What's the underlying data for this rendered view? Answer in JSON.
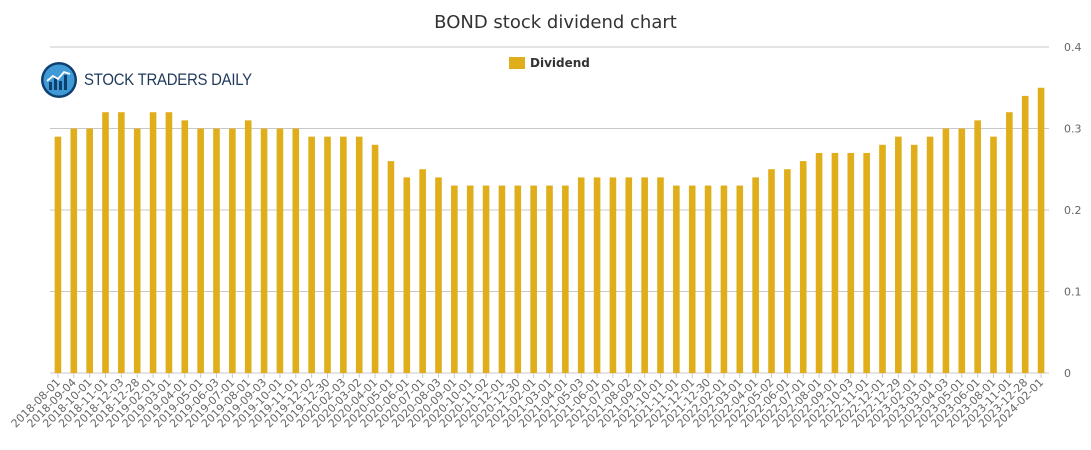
{
  "chart_data": {
    "type": "bar",
    "title": "BOND stock dividend chart",
    "xlabel": "",
    "ylabel": "",
    "ylim": [
      0,
      0.4
    ],
    "yticks": [
      "0",
      "0.1",
      "0.2",
      "0.3",
      "0.4"
    ],
    "grid": true,
    "legend_position": "top-center",
    "bar_color": "#dfae1a",
    "series": [
      {
        "name": "Dividend",
        "values": [
          0.29,
          0.3,
          0.3,
          0.32,
          0.32,
          0.3,
          0.32,
          0.32,
          0.31,
          0.3,
          0.3,
          0.3,
          0.31,
          0.3,
          0.3,
          0.3,
          0.29,
          0.29,
          0.29,
          0.29,
          0.28,
          0.26,
          0.24,
          0.25,
          0.24,
          0.23,
          0.23,
          0.23,
          0.23,
          0.23,
          0.23,
          0.23,
          0.23,
          0.24,
          0.24,
          0.24,
          0.24,
          0.24,
          0.24,
          0.23,
          0.23,
          0.23,
          0.23,
          0.23,
          0.24,
          0.25,
          0.25,
          0.26,
          0.27,
          0.27,
          0.27,
          0.27,
          0.28,
          0.29,
          0.28,
          0.29,
          0.3,
          0.3,
          0.31,
          0.29,
          0.32,
          0.34,
          0.35
        ]
      }
    ],
    "categories": [
      "2018-08-01",
      "2018-09-04",
      "2018-10-01",
      "2018-11-01",
      "2018-12-03",
      "2018-12-28",
      "2019-02-01",
      "2019-03-01",
      "2019-04-01",
      "2019-05-01",
      "2019-06-03",
      "2019-07-01",
      "2019-08-01",
      "2019-09-03",
      "2019-10-01",
      "2019-11-01",
      "2019-12-02",
      "2019-12-30",
      "2020-02-03",
      "2020-03-02",
      "2020-04-01",
      "2020-05-01",
      "2020-06-01",
      "2020-07-01",
      "2020-08-03",
      "2020-09-01",
      "2020-10-01",
      "2020-11-02",
      "2020-12-01",
      "2020-12-30",
      "2021-02-01",
      "2021-03-01",
      "2021-04-01",
      "2021-05-03",
      "2021-06-01",
      "2021-07-01",
      "2021-08-02",
      "2021-09-01",
      "2021-10-01",
      "2021-11-01",
      "2021-12-01",
      "2021-12-30",
      "2022-02-01",
      "2022-03-01",
      "2022-04-01",
      "2022-05-02",
      "2022-06-01",
      "2022-07-01",
      "2022-08-01",
      "2022-09-01",
      "2022-10-03",
      "2022-11-01",
      "2022-12-01",
      "2022-12-29",
      "2023-02-01",
      "2023-03-01",
      "2023-04-03",
      "2023-05-01",
      "2023-06-01",
      "2023-08-01",
      "2023-11-01",
      "2023-12-28",
      "2024-02-01"
    ]
  },
  "logo": {
    "text": "STOCK TRADERS DAILY",
    "icon": "chart-globe-icon",
    "colors": {
      "text": "#1f3a5a",
      "circle": "#1b78c2"
    }
  }
}
